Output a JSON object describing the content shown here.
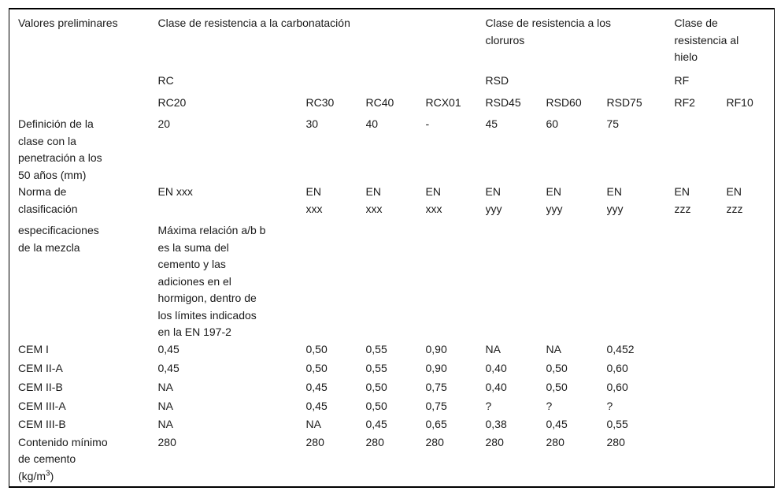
{
  "table": {
    "top_header": {
      "col0": "Valores preliminares",
      "groups": [
        {
          "title": "Clase de resistencia a la carbonatación",
          "code": "RC"
        },
        {
          "title": "Clase de resistencia a los cloruros",
          "code": "RSD"
        },
        {
          "title": "Clase de resistencia al hielo",
          "code": "RF"
        }
      ],
      "class_codes": [
        "RC20",
        "RC30",
        "RC40",
        "RCX01",
        "RSD45",
        "RSD60",
        "RSD75",
        "RF2",
        "RF10"
      ]
    },
    "rows": [
      {
        "label": "Definición de la clase con la penetración a los 50 años (mm)",
        "values": [
          "20",
          "30",
          "40",
          "-",
          "45",
          "60",
          "75",
          "",
          ""
        ]
      },
      {
        "label": "Norma de clasificación",
        "values": [
          "EN xxx",
          "EN xxx",
          "EN xxx",
          "EN xxx",
          "EN yyy",
          "EN yyy",
          "EN yyy",
          "EN zzz",
          "EN zzz"
        ]
      },
      {
        "label": "especificaciones de la mezcla",
        "values": [
          "Máxima relación a/b b es la suma del cemento y las adiciones en el hormigon, dentro de los límites indicados en la EN 197-2",
          "",
          "",
          "",
          "",
          "",
          "",
          "",
          ""
        ]
      },
      {
        "label": "CEM I",
        "values": [
          "0,45",
          "0,50",
          "0,55",
          "0,90",
          "NA",
          "NA",
          "0,452",
          "",
          ""
        ]
      },
      {
        "label": "CEM II-A",
        "values": [
          "0,45",
          "0,50",
          "0,55",
          "0,90",
          "0,40",
          "0,50",
          "0,60",
          "",
          ""
        ]
      },
      {
        "label": "CEM II-B",
        "values": [
          "NA",
          "0,45",
          "0,50",
          "0,75",
          "0,40",
          "0,50",
          "0,60",
          "",
          ""
        ]
      },
      {
        "label": "CEM III-A",
        "values": [
          "NA",
          "0,45",
          "0,50",
          "0,75",
          "?",
          "?",
          "?",
          "",
          ""
        ]
      },
      {
        "label": "CEM III-B",
        "values": [
          "NA",
          "NA",
          "0,45",
          "0,65",
          "0,38",
          "0,45",
          "0,55",
          "",
          ""
        ]
      },
      {
        "label": "Contenido mínimo de cemento",
        "unit_pre": "(kg/m",
        "unit_sup": "3",
        "unit_post": ")",
        "values": [
          "280",
          "280",
          "280",
          "280",
          "280",
          "280",
          "280",
          "",
          ""
        ]
      }
    ]
  }
}
